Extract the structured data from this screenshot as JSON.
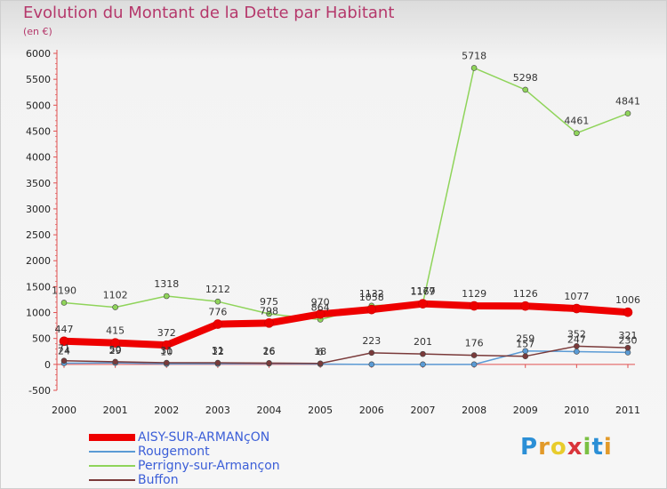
{
  "header": {
    "title": "Evolution du Montant de la Dette par Habitant",
    "subtitle": "(en €)"
  },
  "logo": {
    "text": "Proxiti"
  },
  "chart_data": {
    "type": "line",
    "title": "Evolution du Montant de la Dette par Habitant",
    "subtitle": "(en €)",
    "xlabel": "",
    "ylabel": "",
    "ylim": [
      -500,
      6000
    ],
    "yticks": [
      -500,
      0,
      500,
      1000,
      1500,
      2000,
      2500,
      3000,
      3500,
      4000,
      4500,
      5000,
      5500,
      6000
    ],
    "categories": [
      "2000",
      "2001",
      "2002",
      "2003",
      "2004",
      "2005",
      "2006",
      "2007",
      "2008",
      "2009",
      "2010",
      "2011"
    ],
    "grid": false,
    "legend": "bottom-left",
    "series": [
      {
        "name": "Rougemont",
        "color": "#5b9bd5",
        "width": 1.5,
        "values": [
          24,
          29,
          10,
          12,
          16,
          6,
          0,
          0,
          0,
          259,
          247,
          230
        ],
        "labels": [
          "24",
          "29",
          "10",
          "12",
          "16",
          "6",
          "",
          "",
          "",
          "259",
          "247",
          "230"
        ]
      },
      {
        "name": "Perrigny-sur-Armançon",
        "color": "#8fd45a",
        "width": 1.5,
        "values": [
          1190,
          1102,
          1318,
          1212,
          975,
          864,
          1132,
          1177,
          5718,
          5298,
          4461,
          4841
        ],
        "labels": [
          "1190",
          "1102",
          "1318",
          "1212",
          "975",
          "864",
          "1132",
          "1177",
          "5718",
          "5298",
          "4461",
          "4841"
        ]
      },
      {
        "name": "Buffon",
        "color": "#7a3a3a",
        "width": 1.5,
        "values": [
          71,
          50,
          31,
          31,
          26,
          18,
          223,
          201,
          176,
          157,
          352,
          321
        ],
        "labels": [
          "71",
          "50",
          "31",
          "31",
          "26",
          "18",
          "223",
          "201",
          "176",
          "157",
          "352",
          "321"
        ]
      },
      {
        "name": "AISY-SUR-ARMANçON",
        "color": "#ee0000",
        "width": 8,
        "values": [
          447,
          415,
          372,
          776,
          798,
          970,
          1058,
          1169,
          1129,
          1126,
          1077,
          1006
        ],
        "labels": [
          "447",
          "415",
          "372",
          "776",
          "798",
          "970",
          "1058",
          "1169",
          "1129",
          "1126",
          "1077",
          "1006"
        ]
      }
    ]
  },
  "legend_items": [
    {
      "name": "AISY-SUR-ARMANçON",
      "color": "#ee0000",
      "thick": 8
    },
    {
      "name": "Rougemont",
      "color": "#5b9bd5",
      "thick": 2
    },
    {
      "name": "Perrigny-sur-Armançon",
      "color": "#8fd45a",
      "thick": 2
    },
    {
      "name": "Buffon",
      "color": "#7a3a3a",
      "thick": 2
    }
  ]
}
